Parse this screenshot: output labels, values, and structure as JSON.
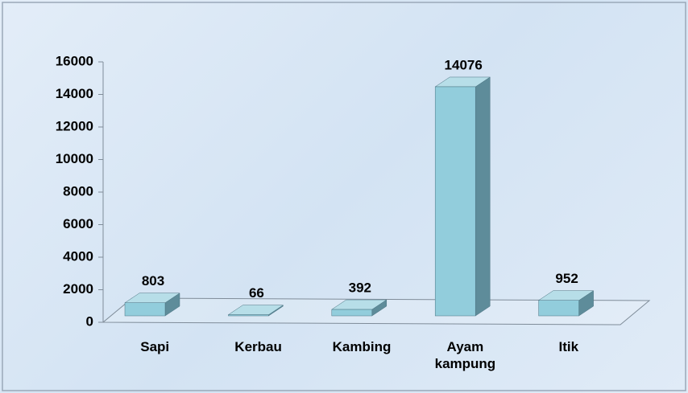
{
  "chart_data": {
    "type": "bar3d",
    "categories": [
      "Sapi",
      "Kerbau",
      "Kambing",
      "Ayam kampung",
      "Itik"
    ],
    "values": [
      803,
      66,
      392,
      14076,
      952
    ],
    "color": "#92cddc",
    "ylim": [
      0,
      16000
    ],
    "yticks": [
      0,
      2000,
      4000,
      6000,
      8000,
      10000,
      12000,
      14000,
      16000
    ]
  }
}
